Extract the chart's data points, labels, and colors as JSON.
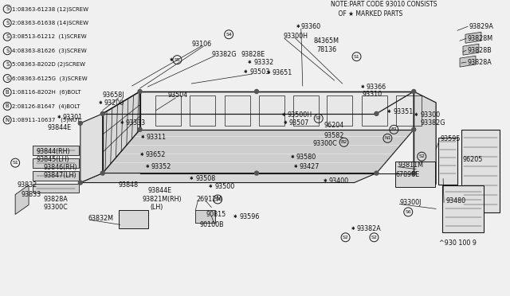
{
  "bg_color": "#f0f0f0",
  "line_color": "#1a1a1a",
  "text_color": "#111111",
  "legend_items": [
    {
      "sym": "S",
      "num": "1",
      "rest": ":08363-61238 (12)SCREW"
    },
    {
      "sym": "S",
      "num": "2",
      "rest": ":08363-61638 (14)SCREW"
    },
    {
      "sym": "S",
      "num": "3",
      "rest": ":08513-61212  (1)SCREW"
    },
    {
      "sym": "S",
      "num": "4",
      "rest": ":08363-81626  (3)SCREW"
    },
    {
      "sym": "S",
      "num": "5",
      "rest": ":08363-8202D (2)SCREW"
    },
    {
      "sym": "S",
      "num": "6",
      "rest": ":08363-6125G  (3)SCREW"
    },
    {
      "sym": "B",
      "num": "1",
      "rest": ":08116-8202H  (6)BOLT"
    },
    {
      "sym": "B",
      "num": "2",
      "rest": ":08126-81647  (4)BOLT"
    },
    {
      "sym": "N",
      "num": "1",
      "rest": ":08911-10637   (5)NUT"
    }
  ],
  "note_line1": "NOTE:PART CODE 93010 CONSISTS",
  "note_line2": "    OF ★ MARKED PARTS",
  "font_size": 5.8
}
